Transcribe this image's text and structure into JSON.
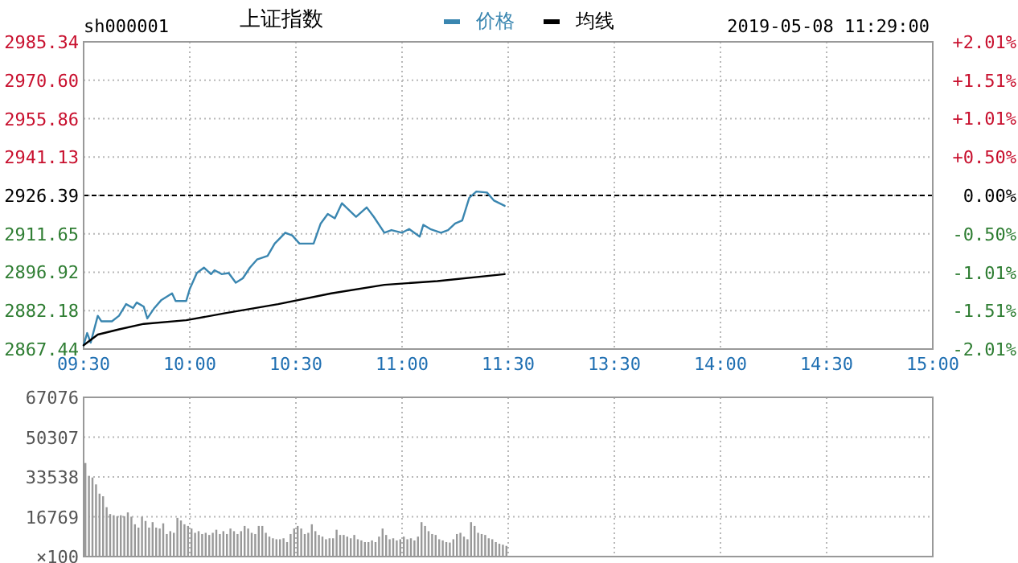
{
  "chart_data": [
    {
      "type": "line",
      "title": "上证指数",
      "annotations": [
        "sh000001",
        "2019-05-08 11:29:00"
      ],
      "legend": "top",
      "grid": true,
      "categories": [
        "09:30",
        null,
        null,
        null,
        null,
        null,
        null,
        null,
        null,
        null,
        null,
        null,
        null,
        null,
        null,
        null,
        null,
        null,
        null,
        null,
        null,
        null,
        null,
        null,
        null,
        null,
        null,
        null,
        null,
        null,
        "10:00",
        null,
        null,
        null,
        null,
        null,
        null,
        null,
        null,
        null,
        null,
        null,
        null,
        null,
        null,
        null,
        null,
        null,
        null,
        null,
        null,
        null,
        null,
        null,
        null,
        null,
        null,
        null,
        null,
        null,
        "10:30",
        null,
        null,
        null,
        null,
        null,
        null,
        null,
        null,
        null,
        null,
        null,
        null,
        null,
        null,
        null,
        null,
        null,
        null,
        null,
        null,
        null,
        null,
        null,
        null,
        null,
        null,
        null,
        null,
        null,
        "11:00",
        null,
        null,
        null,
        null,
        null,
        null,
        null,
        null,
        null,
        null,
        null,
        null,
        null,
        null,
        null,
        null,
        null,
        null,
        null,
        null,
        null,
        null,
        null,
        null,
        null,
        null,
        null,
        null,
        null,
        "11:30",
        null,
        null,
        null,
        null,
        null,
        null,
        null,
        null,
        null,
        null,
        null,
        null,
        null,
        null,
        null,
        null,
        null,
        null,
        null,
        null,
        null,
        null,
        null,
        null,
        null,
        null,
        null,
        null,
        null,
        "13:30",
        null,
        null,
        null,
        null,
        null,
        null,
        null,
        null,
        null,
        null,
        null,
        null,
        null,
        null,
        null,
        null,
        null,
        null,
        null,
        null,
        null,
        null,
        null,
        null,
        null,
        null,
        null,
        null,
        null,
        "14:00",
        null,
        null,
        null,
        null,
        null,
        null,
        null,
        null,
        null,
        null,
        null,
        null,
        null,
        null,
        null,
        null,
        null,
        null,
        null,
        null,
        null,
        null,
        null,
        null,
        null,
        null,
        null,
        null,
        null,
        "14:30",
        null,
        null,
        null,
        null,
        null,
        null,
        null,
        null,
        null,
        null,
        null,
        null,
        null,
        null,
        null,
        null,
        null,
        null,
        null,
        null,
        null,
        null,
        null,
        null,
        null,
        null,
        null,
        null,
        null,
        "15:00"
      ],
      "ylim": [
        2867.44,
        2985.34
      ],
      "yticks": [
        2867.44,
        2882.18,
        2896.92,
        2911.65,
        2926.39,
        2941.13,
        2955.86,
        {
          "value": 2970.6,
          "label": "2970.60"
        },
        2985.34
      ],
      "y2lim": [
        -2.01,
        2.01
      ],
      "y2ticks": [
        {
          "value": -2.01,
          "label": "-2.01%"
        },
        {
          "value": -1.51,
          "label": "-1.51%"
        },
        {
          "value": -1.01,
          "label": "-1.01%"
        },
        {
          "value": -0.5,
          "label": "-0.50%"
        },
        {
          "value": 0,
          "label": "0.00%"
        },
        {
          "value": 0.5,
          "label": "+0.50%"
        },
        {
          "value": 1.01,
          "label": "+1.01%"
        },
        {
          "value": 1.51,
          "label": "+1.51%"
        },
        {
          "value": 2.01,
          "label": "+2.01%"
        }
      ],
      "ref_lines": [
        {
          "axis": "y",
          "value": 2926.39,
          "color": "#000000",
          "line_style": "dashed"
        }
      ],
      "series": [
        {
          "name": "价格",
          "color": "#3a86b0",
          "values": [
            2868.9,
            2873.6,
            2869.9,
            null,
            2880.2,
            2878.1,
            null,
            null,
            2878.1,
            null,
            2880.2,
            null,
            2884.7,
            null,
            2883.2,
            2885.3,
            null,
            2883.7,
            2879.2,
            null,
            2883.2,
            null,
            2886.3,
            null,
            null,
            2888.8,
            2885.9,
            null,
            null,
            2885.9,
            2890.5,
            null,
            2896.6,
            null,
            2898.7,
            null,
            2896.2,
            2897.7,
            null,
            2896.2,
            null,
            2896.6,
            null,
            2892.9,
            null,
            2894.6,
            null,
            2898.7,
            null,
            2901.8,
            null,
            null,
            2903.2,
            null,
            2907.9,
            null,
            null,
            2912.1,
            null,
            2911.0,
            null,
            2907.9,
            null,
            null,
            null,
            2907.9,
            null,
            2915.6,
            null,
            2919.3,
            null,
            2917.6,
            null,
            2923.4,
            null,
            null,
            null,
            2918.2,
            null,
            null,
            2921.8,
            null,
            2918.2,
            null,
            null,
            2912.1,
            null,
            2913.1,
            null,
            null,
            2912.1,
            null,
            2913.5,
            null,
            null,
            2910.6,
            2915.1,
            null,
            2913.5,
            null,
            null,
            2912.1,
            null,
            2913.1,
            null,
            2915.6,
            null,
            2916.8,
            null,
            2925.5,
            null,
            2927.9,
            null,
            null,
            2927.5,
            null,
            2924.4,
            null,
            null,
            2922.4,
            null,
            null,
            null,
            null,
            null,
            null,
            null,
            null,
            null,
            null,
            null,
            null,
            null,
            null,
            null,
            null,
            null,
            null,
            null,
            null,
            null,
            null,
            null,
            null,
            null,
            null,
            null,
            null,
            null,
            null,
            null,
            null,
            null,
            null,
            null,
            null,
            null,
            null,
            null,
            null,
            null,
            null,
            null,
            null,
            null,
            null,
            null,
            null,
            null,
            null,
            null,
            null,
            null,
            null,
            null,
            null,
            null,
            null,
            null,
            null,
            null,
            null,
            null,
            null,
            null,
            null,
            null,
            null,
            null,
            null,
            null,
            null,
            null,
            null,
            null,
            null,
            null,
            null,
            null,
            null,
            null,
            null,
            null,
            null,
            null,
            null,
            null,
            null,
            null,
            null,
            null,
            null,
            null,
            null,
            null,
            null,
            null,
            null,
            null,
            null,
            null,
            null,
            null,
            null,
            null,
            null,
            null,
            null,
            null,
            null,
            null,
            null,
            null,
            null,
            null,
            null,
            null,
            null,
            null,
            null,
            null
          ]
        },
        {
          "name": "均线",
          "color": "#000000",
          "values": [
            2868.9,
            null,
            null,
            null,
            2873.0,
            null,
            null,
            null,
            null,
            null,
            2875.0,
            null,
            null,
            null,
            null,
            null,
            null,
            2877.1,
            null,
            null,
            null,
            null,
            null,
            null,
            null,
            null,
            null,
            null,
            null,
            2878.5,
            null,
            null,
            null,
            null,
            null,
            null,
            null,
            null,
            null,
            null,
            2881.2,
            null,
            null,
            null,
            null,
            null,
            null,
            null,
            null,
            null,
            null,
            null,
            null,
            null,
            null,
            2884.7,
            null,
            null,
            null,
            null,
            null,
            null,
            null,
            null,
            null,
            null,
            null,
            null,
            null,
            null,
            2888.8,
            null,
            null,
            null,
            null,
            null,
            null,
            null,
            null,
            null,
            null,
            null,
            null,
            null,
            null,
            2892.1,
            null,
            null,
            null,
            null,
            null,
            null,
            null,
            null,
            null,
            null,
            null,
            null,
            null,
            null,
            2893.5,
            null,
            null,
            null,
            null,
            null,
            null,
            null,
            null,
            null,
            null,
            null,
            null,
            null,
            null,
            null,
            null,
            null,
            null,
            2896.2,
            null,
            null,
            null,
            null,
            null,
            null,
            null,
            null,
            null,
            null,
            null,
            null,
            null,
            null,
            null,
            null,
            null,
            null,
            null,
            null,
            null,
            null,
            null,
            null,
            null,
            null,
            null,
            null,
            null,
            null,
            null,
            null,
            null,
            null,
            null,
            null,
            null,
            null,
            null,
            null,
            null,
            null,
            null,
            null,
            null,
            null,
            null,
            null,
            null,
            null,
            null,
            null,
            null,
            null,
            null,
            null,
            null,
            null,
            null,
            null,
            null,
            null,
            null,
            null,
            null,
            null,
            null,
            null,
            null,
            null,
            null,
            null,
            null,
            null,
            null,
            null,
            null,
            null,
            null,
            null,
            null,
            null,
            null,
            null,
            null,
            null,
            null,
            null,
            null,
            null,
            null,
            null,
            null,
            null,
            null,
            null,
            null,
            null,
            null,
            null,
            null,
            null,
            null,
            null,
            null,
            null,
            null,
            null,
            null,
            null,
            null,
            null,
            null,
            null,
            null,
            null,
            null,
            null,
            null,
            null,
            null
          ]
        }
      ]
    },
    {
      "type": "bar",
      "grid": true,
      "tick_labels": "y",
      "ylabel": "×100",
      "categories": [
        null,
        null,
        null,
        null,
        null,
        null,
        null,
        null,
        null,
        null,
        null,
        null,
        null,
        null,
        null,
        null,
        null,
        null,
        null,
        null,
        null,
        null,
        null,
        null,
        null,
        null,
        null,
        null,
        null,
        null,
        null,
        null,
        null,
        null,
        null,
        null,
        null,
        null,
        null,
        null,
        null,
        null,
        null,
        null,
        null,
        null,
        null,
        null,
        null,
        null,
        null,
        null,
        null,
        null,
        null,
        null,
        null,
        null,
        null,
        null,
        null,
        null,
        null,
        null,
        null,
        null,
        null,
        null,
        null,
        null,
        null,
        null,
        null,
        null,
        null,
        null,
        null,
        null,
        null,
        null,
        null,
        null,
        null,
        null,
        null,
        null,
        null,
        null,
        null,
        null,
        null,
        null,
        null,
        null,
        null,
        null,
        null,
        null,
        null,
        null,
        null,
        null,
        null,
        null,
        null,
        null,
        null,
        null,
        null,
        null,
        null,
        null,
        null,
        null,
        null,
        null,
        null,
        null,
        null,
        null,
        null,
        null,
        null,
        null,
        null,
        null,
        null,
        null,
        null,
        null,
        null,
        null,
        null,
        null,
        null,
        null,
        null,
        null,
        null,
        null,
        null,
        null,
        null,
        null,
        null,
        null,
        null,
        null,
        null,
        null,
        null,
        null,
        null,
        null,
        null,
        null,
        null,
        null,
        null,
        null,
        null,
        null,
        null,
        null,
        null,
        null,
        null,
        null,
        null,
        null,
        null,
        null,
        null,
        null,
        null,
        null,
        null,
        null,
        null,
        null,
        null,
        null,
        null,
        null,
        null,
        null,
        null,
        null,
        null,
        null,
        null,
        null,
        null,
        null,
        null,
        null,
        null,
        null,
        null,
        null,
        null,
        null,
        null,
        null,
        null,
        null,
        null,
        null,
        null,
        null,
        null,
        null,
        null,
        null,
        null,
        null,
        null,
        null,
        null,
        null,
        null,
        null,
        null,
        null,
        null,
        null,
        null,
        null,
        null,
        null,
        null,
        null,
        null,
        null,
        null,
        null,
        null,
        null,
        null,
        null,
        null
      ],
      "ylim": [
        0,
        67076
      ],
      "yticks": [
        16769,
        33538,
        50307,
        67076
      ],
      "series": [
        {
          "color": "#999999",
          "values": [
            39400,
            34000,
            33300,
            30400,
            26500,
            25400,
            20800,
            17900,
            17400,
            17000,
            17400,
            17000,
            18600,
            16800,
            13600,
            12200,
            16800,
            15000,
            12200,
            14500,
            12200,
            11800,
            14000,
            9500,
            10700,
            10000,
            16300,
            15200,
            13600,
            12900,
            11800,
            10000,
            10700,
            9500,
            10000,
            9100,
            10000,
            11300,
            9500,
            10700,
            9500,
            11800,
            10700,
            9500,
            10700,
            12900,
            11800,
            10000,
            9500,
            12900,
            12900,
            10000,
            8400,
            7700,
            7300,
            7300,
            7700,
            6100,
            9500,
            11800,
            12900,
            11800,
            9500,
            10000,
            13600,
            10700,
            9100,
            8400,
            7300,
            7700,
            7700,
            11300,
            9100,
            9100,
            8400,
            7700,
            9100,
            7300,
            6800,
            6100,
            6100,
            6800,
            6100,
            8400,
            11800,
            9100,
            7300,
            7700,
            6800,
            7300,
            8400,
            7300,
            7700,
            6800,
            8400,
            14500,
            12900,
            10700,
            9500,
            9100,
            7300,
            6800,
            6100,
            5900,
            7300,
            9500,
            10000,
            8400,
            7300,
            14500,
            12900,
            10000,
            9500,
            9100,
            7700,
            7300,
            6100,
            5400,
            5000,
            4500,
            null,
            null,
            null,
            null,
            null,
            null,
            null,
            null,
            null,
            null,
            null,
            null,
            null,
            null,
            null,
            null,
            null,
            null,
            null,
            null,
            null,
            null,
            null,
            null,
            null,
            null,
            null,
            null,
            null,
            null,
            null,
            null,
            null,
            null,
            null,
            null,
            null,
            null,
            null,
            null,
            null,
            null,
            null,
            null,
            null,
            null,
            null,
            null,
            null,
            null,
            null,
            null,
            null,
            null,
            null,
            null,
            null,
            null,
            null,
            null,
            null,
            null,
            null,
            null,
            null,
            null,
            null,
            null,
            null,
            null,
            null,
            null,
            null,
            null,
            null,
            null,
            null,
            null,
            null,
            null,
            null,
            null,
            null,
            null,
            null,
            null,
            null,
            null,
            null,
            null,
            null,
            null,
            null,
            null,
            null,
            null,
            null,
            null,
            null,
            null,
            null,
            null,
            null,
            null,
            null,
            null,
            null,
            null,
            null,
            null,
            null,
            null,
            null,
            null,
            null,
            null,
            null,
            null,
            null,
            null,
            null
          ]
        }
      ]
    }
  ]
}
